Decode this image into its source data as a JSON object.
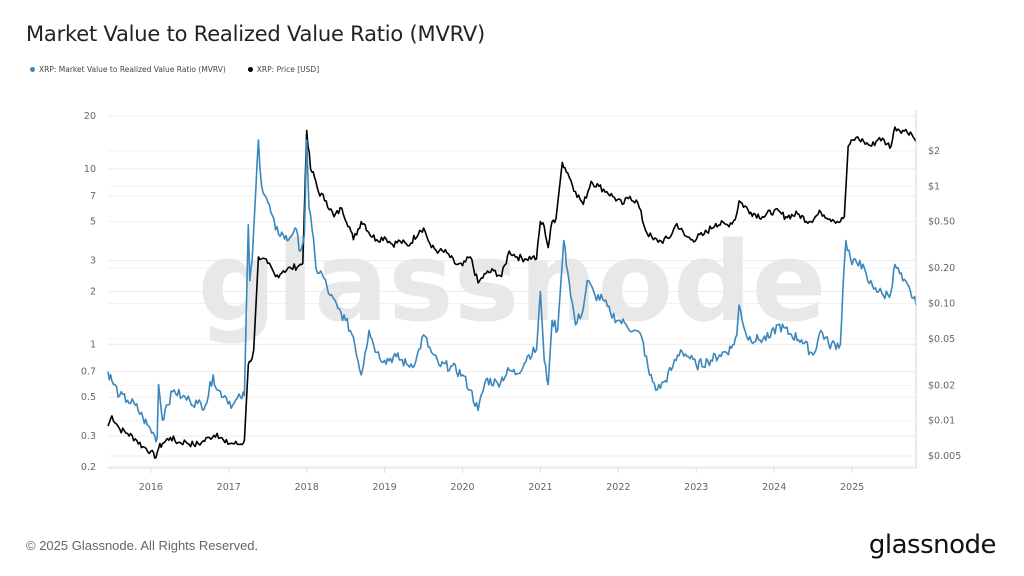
{
  "chart_data": {
    "type": "line",
    "title": "Market Value to Realized Value Ratio (MVRV)",
    "watermark": "glassnode",
    "xlabel": "",
    "x_ticks": [
      "2016",
      "2017",
      "2018",
      "2019",
      "2020",
      "2021",
      "2022",
      "2023",
      "2024",
      "2025"
    ],
    "x_range": [
      2015.45,
      2025.82
    ],
    "y_left": {
      "scale": "log",
      "range": [
        0.2,
        20
      ],
      "ticks": [
        "20",
        "10",
        "7",
        "5",
        "3",
        "2",
        "1",
        "0.7",
        "0.5",
        "0.3",
        "0.2"
      ],
      "tick_values": [
        20,
        10,
        7,
        5,
        3,
        2,
        1,
        0.7,
        0.5,
        0.3,
        0.2
      ]
    },
    "y_right": {
      "scale": "log",
      "range": [
        0.0042,
        3.8
      ],
      "ticks": [
        "$2",
        "$1",
        "$0.50",
        "$0.20",
        "$0.10",
        "$0.05",
        "$0.02",
        "$0.01",
        "$0.005"
      ],
      "tick_values": [
        2,
        1,
        0.5,
        0.2,
        0.1,
        0.05,
        0.02,
        0.01,
        0.005
      ]
    },
    "grid": "horizontal",
    "legend_position": "top-left",
    "series": [
      {
        "name": "XRP: Market Value to Realized Value Ratio (MVRV)",
        "axis": "left",
        "color": "#3a87bd",
        "x": [
          2015.45,
          2015.5,
          2015.6,
          2015.7,
          2015.8,
          2015.9,
          2015.95,
          2016.05,
          2016.08,
          2016.1,
          2016.15,
          2016.2,
          2016.3,
          2016.4,
          2016.5,
          2016.6,
          2016.7,
          2016.8,
          2016.85,
          2016.95,
          2017.05,
          2017.15,
          2017.2,
          2017.25,
          2017.27,
          2017.3,
          2017.35,
          2017.38,
          2017.42,
          2017.5,
          2017.6,
          2017.7,
          2017.75,
          2017.85,
          2017.92,
          2017.97,
          2018.0,
          2018.03,
          2018.07,
          2018.12,
          2018.2,
          2018.3,
          2018.4,
          2018.5,
          2018.6,
          2018.7,
          2018.75,
          2018.8,
          2018.9,
          2019.0,
          2019.15,
          2019.3,
          2019.4,
          2019.5,
          2019.6,
          2019.7,
          2019.85,
          2020.0,
          2020.1,
          2020.2,
          2020.3,
          2020.45,
          2020.6,
          2020.7,
          2020.85,
          2020.95,
          2021.0,
          2021.05,
          2021.1,
          2021.15,
          2021.22,
          2021.3,
          2021.35,
          2021.45,
          2021.55,
          2021.6,
          2021.7,
          2021.8,
          2021.9,
          2022.0,
          2022.1,
          2022.2,
          2022.3,
          2022.4,
          2022.5,
          2022.6,
          2022.7,
          2022.8,
          2022.9,
          2023.0,
          2023.15,
          2023.3,
          2023.45,
          2023.52,
          2023.55,
          2023.65,
          2023.8,
          2023.95,
          2024.05,
          2024.2,
          2024.35,
          2024.5,
          2024.6,
          2024.7,
          2024.85,
          2024.88,
          2024.92,
          2025.0,
          2025.1,
          2025.2,
          2025.3,
          2025.4,
          2025.5,
          2025.55,
          2025.65,
          2025.75,
          2025.82
        ],
        "values": [
          0.7,
          0.62,
          0.51,
          0.48,
          0.45,
          0.38,
          0.35,
          0.3,
          0.29,
          0.59,
          0.37,
          0.45,
          0.55,
          0.5,
          0.48,
          0.46,
          0.45,
          0.67,
          0.55,
          0.51,
          0.45,
          0.5,
          0.51,
          4.8,
          2.3,
          3.0,
          8.0,
          14.6,
          8.1,
          6.5,
          4.5,
          4.2,
          3.9,
          4.6,
          3.4,
          4.2,
          14.6,
          6.0,
          4.5,
          2.7,
          2.5,
          1.9,
          1.6,
          1.37,
          1.1,
          0.67,
          0.9,
          1.2,
          0.9,
          0.81,
          0.85,
          0.76,
          0.8,
          1.13,
          0.9,
          0.76,
          0.75,
          0.67,
          0.55,
          0.42,
          0.63,
          0.6,
          0.71,
          0.68,
          0.87,
          0.93,
          2.0,
          0.8,
          0.59,
          1.37,
          1.2,
          3.9,
          2.6,
          1.29,
          1.6,
          2.3,
          1.9,
          1.8,
          1.5,
          1.37,
          1.3,
          1.2,
          1.1,
          0.67,
          0.55,
          0.62,
          0.75,
          0.93,
          0.85,
          0.76,
          0.8,
          0.87,
          0.95,
          1.13,
          1.67,
          1.1,
          1.06,
          1.1,
          1.29,
          1.15,
          1.06,
          0.87,
          1.2,
          1.0,
          1.0,
          2.0,
          3.9,
          2.85,
          3.0,
          2.3,
          2.1,
          1.9,
          2.0,
          2.85,
          2.3,
          2.0,
          1.67
        ]
      },
      {
        "name": "XRP: Price [USD]",
        "axis": "right",
        "color": "#000000",
        "x": [
          2015.45,
          2015.5,
          2015.6,
          2015.7,
          2015.8,
          2015.9,
          2016.0,
          2016.05,
          2016.1,
          2016.15,
          2016.25,
          2016.35,
          2016.45,
          2016.55,
          2016.65,
          2016.75,
          2016.85,
          2016.95,
          2017.05,
          2017.15,
          2017.2,
          2017.25,
          2017.28,
          2017.32,
          2017.38,
          2017.42,
          2017.5,
          2017.6,
          2017.7,
          2017.8,
          2017.9,
          2017.95,
          2018.0,
          2018.05,
          2018.1,
          2018.15,
          2018.25,
          2018.35,
          2018.45,
          2018.55,
          2018.6,
          2018.7,
          2018.75,
          2018.8,
          2018.9,
          2019.0,
          2019.1,
          2019.2,
          2019.3,
          2019.45,
          2019.5,
          2019.6,
          2019.7,
          2019.8,
          2019.9,
          2020.0,
          2020.1,
          2020.2,
          2020.3,
          2020.4,
          2020.5,
          2020.6,
          2020.7,
          2020.8,
          2020.9,
          2020.95,
          2021.0,
          2021.05,
          2021.1,
          2021.15,
          2021.2,
          2021.28,
          2021.35,
          2021.45,
          2021.55,
          2021.65,
          2021.75,
          2021.85,
          2021.95,
          2022.05,
          2022.15,
          2022.25,
          2022.35,
          2022.45,
          2022.55,
          2022.65,
          2022.75,
          2022.85,
          2022.95,
          2023.1,
          2023.25,
          2023.4,
          2023.5,
          2023.55,
          2023.7,
          2023.85,
          2024.0,
          2024.15,
          2024.3,
          2024.45,
          2024.6,
          2024.75,
          2024.85,
          2024.9,
          2024.95,
          2025.05,
          2025.15,
          2025.25,
          2025.35,
          2025.45,
          2025.5,
          2025.55,
          2025.65,
          2025.75,
          2025.82
        ],
        "values": [
          0.009,
          0.011,
          0.0085,
          0.0078,
          0.007,
          0.006,
          0.0055,
          0.0048,
          0.0058,
          0.0064,
          0.0072,
          0.0065,
          0.0066,
          0.0062,
          0.0065,
          0.0072,
          0.0078,
          0.0065,
          0.0064,
          0.0063,
          0.0068,
          0.03,
          0.032,
          0.04,
          0.25,
          0.24,
          0.22,
          0.17,
          0.19,
          0.2,
          0.21,
          0.22,
          3.0,
          1.4,
          1.2,
          0.9,
          0.75,
          0.55,
          0.65,
          0.45,
          0.35,
          0.5,
          0.47,
          0.4,
          0.35,
          0.37,
          0.32,
          0.34,
          0.31,
          0.42,
          0.44,
          0.3,
          0.28,
          0.27,
          0.22,
          0.21,
          0.25,
          0.15,
          0.18,
          0.19,
          0.17,
          0.28,
          0.25,
          0.24,
          0.25,
          0.24,
          0.5,
          0.45,
          0.3,
          0.5,
          0.53,
          1.6,
          1.3,
          0.9,
          0.7,
          1.1,
          1.0,
          0.9,
          0.8,
          0.7,
          0.82,
          0.72,
          0.42,
          0.35,
          0.34,
          0.36,
          0.48,
          0.38,
          0.35,
          0.39,
          0.48,
          0.47,
          0.52,
          0.75,
          0.6,
          0.55,
          0.62,
          0.55,
          0.58,
          0.5,
          0.6,
          0.52,
          0.5,
          0.55,
          2.2,
          2.6,
          2.4,
          2.2,
          2.6,
          2.3,
          2.2,
          3.2,
          3.0,
          2.9,
          2.4
        ]
      }
    ]
  },
  "legend": {
    "items": [
      {
        "label": "XRP: Market Value to Realized Value Ratio (MVRV)",
        "color": "#3a87bd"
      },
      {
        "label": "XRP: Price [USD]",
        "color": "#000000"
      }
    ]
  },
  "footer": {
    "copyright": "© 2025 Glassnode. All Rights Reserved.",
    "brand": "glassnode"
  }
}
